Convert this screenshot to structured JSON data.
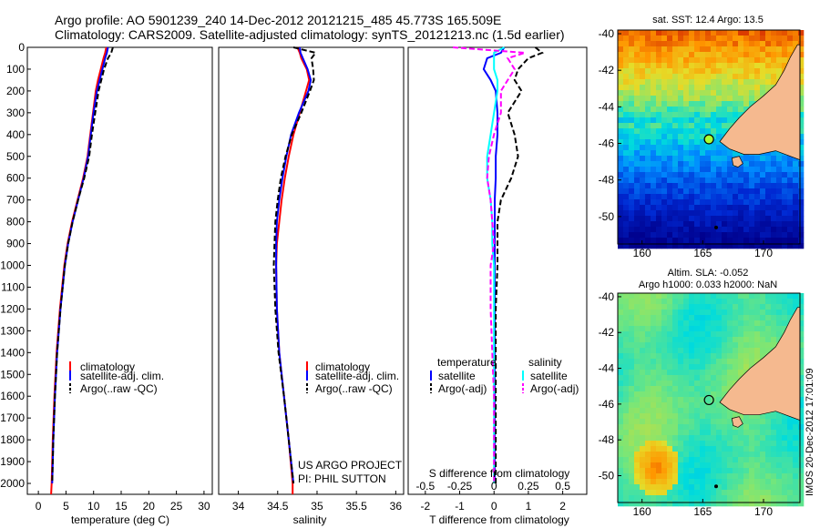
{
  "header": {
    "title_line1": "Argo profile: AO 5901239_240 14-Dec-2012 20121215_485 45.773S 165.509E",
    "title_line2": "Climatology: CARS2009. Satellite-adjusted climatology: synTS_20121213.nc (1.5d earlier)"
  },
  "colors": {
    "climatology": "#ff0000",
    "satellite": "#0000ff",
    "argo": "#000000",
    "salinity_satellite": "#00ffff",
    "salinity_argo": "#ff00ff",
    "land": "#f5b98f"
  },
  "labels": {
    "legend_climatology": "climatology",
    "legend_satellite_adj": "satellite-adj. clim.",
    "legend_argo_raw": "Argo(..raw -QC)",
    "legend_temperature": "temperature",
    "legend_salinity": "salinity",
    "legend_satellite": "satellite",
    "legend_argo_adj": "Argo(-adj)",
    "project": "US ARGO PROJECT",
    "pi": "PI: PHIL SUTTON",
    "sst_title": "sat. SST: 12.4 Argo: 13.5",
    "sla_title1": "Altim. SLA: -0.052",
    "sla_title2": "Argo h1000: 0.033 h2000: NaN",
    "stamp": "IMOS 20-Dec-2012 17:01:09"
  },
  "chart_data": [
    {
      "type": "line",
      "panel": "temperature",
      "xlabel": "temperature (deg C)",
      "ylabel": "",
      "xlim": [
        -2,
        31.5
      ],
      "ylim": [
        2050,
        0
      ],
      "xticks": [
        0,
        5,
        10,
        15,
        20,
        25,
        30
      ],
      "yticks": [
        0,
        100,
        200,
        300,
        400,
        500,
        600,
        700,
        800,
        900,
        1000,
        1100,
        1200,
        1300,
        1400,
        1500,
        1600,
        1700,
        1800,
        1900,
        2000
      ],
      "y": [
        0,
        25,
        50,
        100,
        150,
        200,
        300,
        400,
        500,
        600,
        700,
        800,
        900,
        1000,
        1200,
        1400,
        1600,
        1800,
        2000,
        2050
      ],
      "series": [
        {
          "name": "climatology",
          "values": [
            12.3,
            12.1,
            11.8,
            11.3,
            10.8,
            10.4,
            9.9,
            9.4,
            8.9,
            8.1,
            7.1,
            6.1,
            5.3,
            4.7,
            3.9,
            3.3,
            2.9,
            2.6,
            2.4,
            2.3
          ]
        },
        {
          "name": "satellite-adj. clim.",
          "values": [
            12.6,
            12.4,
            12.1,
            11.6,
            11.1,
            10.6,
            10.0,
            9.5,
            9.0,
            8.2,
            7.2,
            6.2,
            5.4,
            4.8,
            4.0,
            3.4,
            3.0,
            2.7,
            2.5,
            null
          ]
        },
        {
          "name": "Argo(..raw -QC)",
          "values": [
            13.5,
            13.2,
            12.6,
            11.9,
            11.4,
            10.9,
            10.3,
            9.7,
            9.2,
            8.3,
            7.2,
            6.2,
            5.4,
            4.8,
            4.0,
            3.4,
            3.0,
            2.7,
            2.5,
            null
          ]
        }
      ]
    },
    {
      "type": "line",
      "panel": "salinity",
      "xlabel": "salinity",
      "ylabel": "",
      "xlim": [
        33.75,
        36.1
      ],
      "ylim": [
        2050,
        0
      ],
      "xticks": [
        34,
        34.5,
        35,
        35.5,
        36
      ],
      "xticklabels": [
        "34",
        "34.5",
        "35",
        "35.5",
        "36"
      ],
      "y": [
        0,
        25,
        50,
        100,
        150,
        200,
        300,
        400,
        500,
        600,
        700,
        800,
        900,
        1000,
        1200,
        1400,
        1600,
        1800,
        2000,
        2050
      ],
      "series": [
        {
          "name": "climatology",
          "values": [
            34.75,
            34.78,
            34.8,
            34.87,
            34.9,
            34.86,
            34.78,
            34.7,
            34.64,
            34.59,
            34.55,
            34.52,
            34.49,
            34.48,
            34.49,
            34.52,
            34.58,
            34.64,
            34.69,
            34.69
          ]
        },
        {
          "name": "satellite-adj. clim.",
          "values": [
            34.78,
            34.79,
            34.82,
            34.88,
            34.92,
            34.89,
            34.77,
            34.67,
            34.61,
            34.56,
            34.52,
            34.49,
            34.48,
            34.48,
            34.49,
            34.52,
            34.58,
            34.64,
            34.7,
            null
          ]
        },
        {
          "name": "Argo(..raw -QC)",
          "values": [
            34.7,
            34.98,
            34.93,
            34.95,
            34.96,
            34.91,
            34.8,
            34.68,
            34.6,
            34.54,
            34.5,
            34.47,
            34.46,
            34.45,
            34.47,
            34.51,
            34.58,
            34.64,
            34.7,
            null
          ]
        }
      ]
    },
    {
      "type": "line",
      "panel": "difference",
      "xlabel": "T difference from climatology",
      "xlabel_top": "S difference from climatology",
      "xlim": [
        -2.5,
        2.7
      ],
      "ylim": [
        2050,
        0
      ],
      "xticks": [
        -2,
        -1,
        0,
        1,
        2
      ],
      "top_ticklabels": [
        "-0.5",
        "-0.25",
        "0",
        "0.25",
        "0.5"
      ],
      "top_tick_x": [
        -2,
        -1,
        0,
        1,
        2
      ],
      "y": [
        0,
        25,
        50,
        100,
        150,
        200,
        300,
        400,
        500,
        600,
        700,
        800,
        900,
        1000,
        1200,
        1400,
        1600,
        1800,
        2000
      ],
      "series": [
        {
          "name": "temperature satellite",
          "values": [
            0.3,
            0.2,
            -0.2,
            -0.3,
            -0.1,
            0.05,
            0.1,
            0.1,
            0.05,
            0.05,
            0.02,
            0.02,
            0.02,
            0.02,
            0.02,
            0.02,
            0.02,
            0.02,
            0.02
          ]
        },
        {
          "name": "temperature Argo(-adj)",
          "values": [
            1.2,
            1.4,
            1.0,
            0.7,
            0.6,
            0.8,
            0.4,
            0.6,
            0.7,
            0.5,
            0.2,
            0.1,
            0.1,
            0.1,
            0.05,
            0.05,
            0.05,
            0.05,
            0.05
          ]
        },
        {
          "name": "salinity satellite",
          "values": [
            0.3,
            0.0,
            0.0,
            0.0,
            0.1,
            0.1,
            0.0,
            -0.1,
            -0.2,
            -0.2,
            -0.1,
            -0.05,
            -0.05,
            0.0,
            0.0,
            0.0,
            0.0,
            0.0,
            0.0
          ]
        },
        {
          "name": "salinity Argo(-adj)",
          "values": [
            -1.2,
            0.9,
            0.4,
            0.6,
            0.4,
            0.2,
            0.2,
            0.0,
            -0.15,
            -0.2,
            -0.1,
            -0.05,
            0.0,
            -0.1,
            -0.1,
            -0.05,
            0.0,
            0.0,
            0.0
          ]
        }
      ]
    },
    {
      "type": "heatmap",
      "panel": "sst_map",
      "title": "sat. SST: 12.4 Argo: 13.5",
      "xlim": [
        158,
        173
      ],
      "ylim": [
        -51.5,
        -39.8
      ],
      "xticks": [
        160,
        165,
        170
      ],
      "yticks": [
        -40,
        -42,
        -44,
        -46,
        -48,
        -50
      ],
      "argo_position": {
        "lon": 165.509,
        "lat": -45.773
      }
    },
    {
      "type": "heatmap",
      "panel": "sla_map",
      "title": "Altim. SLA: -0.052 Argo h1000: 0.033 h2000: NaN",
      "xlim": [
        158,
        173
      ],
      "ylim": [
        -51.5,
        -39.8
      ],
      "xticks": [
        160,
        165,
        170
      ],
      "yticks": [
        -40,
        -42,
        -44,
        -46,
        -48,
        -50
      ],
      "argo_position": {
        "lon": 165.509,
        "lat": -45.773
      }
    }
  ]
}
